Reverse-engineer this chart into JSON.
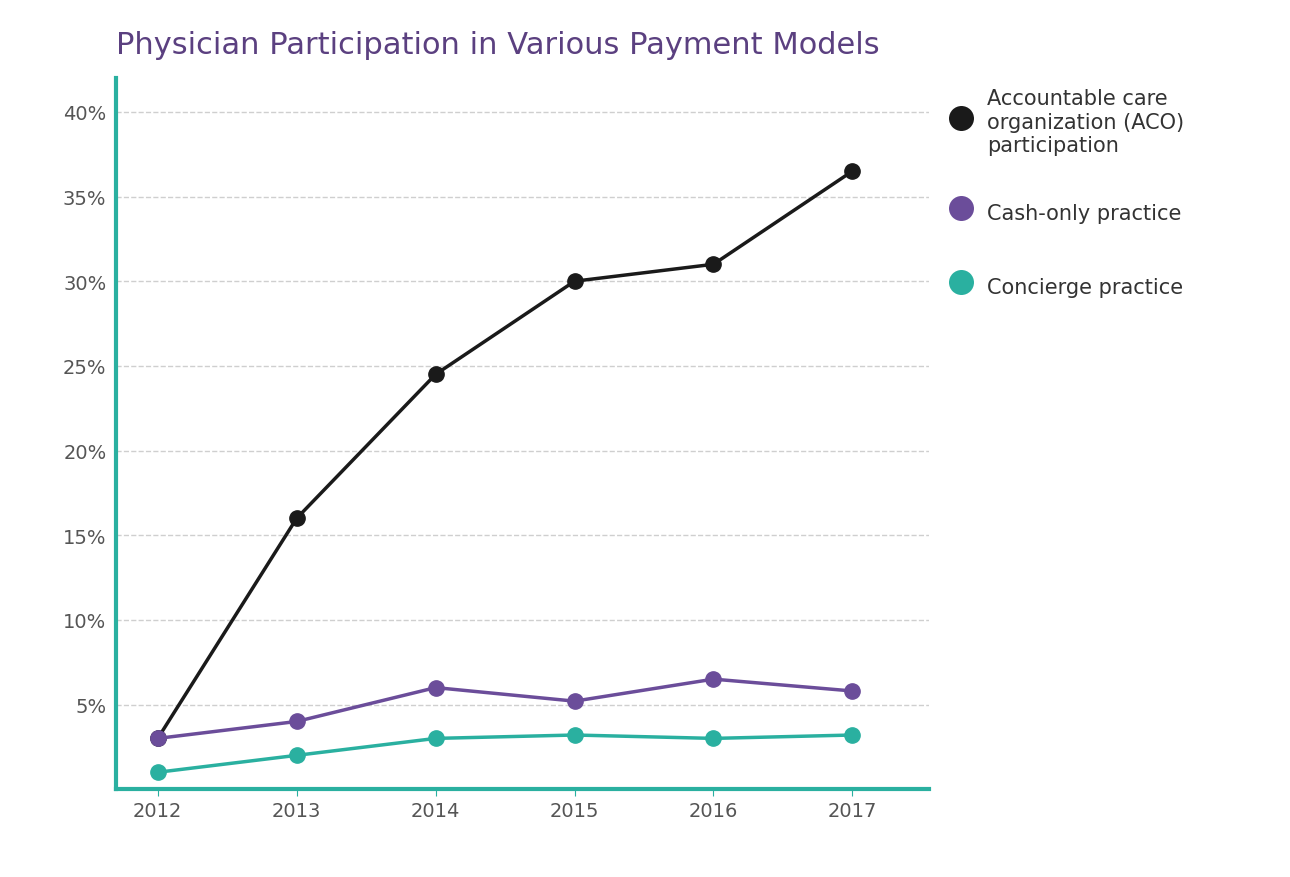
{
  "title": "Physician Participation in Various Payment Models",
  "title_color": "#5b4080",
  "title_fontsize": 22,
  "years": [
    2012,
    2013,
    2014,
    2015,
    2016,
    2017
  ],
  "series": [
    {
      "label": "Accountable care\norganization (ACO)\nparticipation",
      "values": [
        3,
        16,
        24.5,
        30,
        31,
        36.5
      ],
      "color": "#1a1a1a",
      "marker": "o",
      "markersize": 11,
      "linewidth": 2.5
    },
    {
      "label": "Cash-only practice",
      "values": [
        3,
        4,
        6,
        5.2,
        6.5,
        5.8
      ],
      "color": "#6b4d9a",
      "marker": "o",
      "markersize": 11,
      "linewidth": 2.5
    },
    {
      "label": "Concierge practice",
      "values": [
        1,
        2,
        3,
        3.2,
        3,
        3.2
      ],
      "color": "#2ab0a0",
      "marker": "o",
      "markersize": 11,
      "linewidth": 2.5
    }
  ],
  "ylim": [
    0,
    42
  ],
  "yticks": [
    5,
    10,
    15,
    20,
    25,
    30,
    35,
    40
  ],
  "ytick_labels": [
    "5%",
    "10%",
    "15%",
    "20%",
    "25%",
    "30%",
    "35%",
    "40%"
  ],
  "background_color": "#ffffff",
  "plot_bg_color": "#ffffff",
  "left_spine_color": "#2ab0a0",
  "bottom_spine_color": "#2ab0a0",
  "grid_color": "#bbbbbb",
  "grid_style": "dashed",
  "grid_alpha": 0.7,
  "legend_fontsize": 15,
  "axis_tick_fontsize": 14,
  "axis_tick_color": "#555555",
  "figsize": [
    12.9,
    8.78
  ],
  "dpi": 100
}
